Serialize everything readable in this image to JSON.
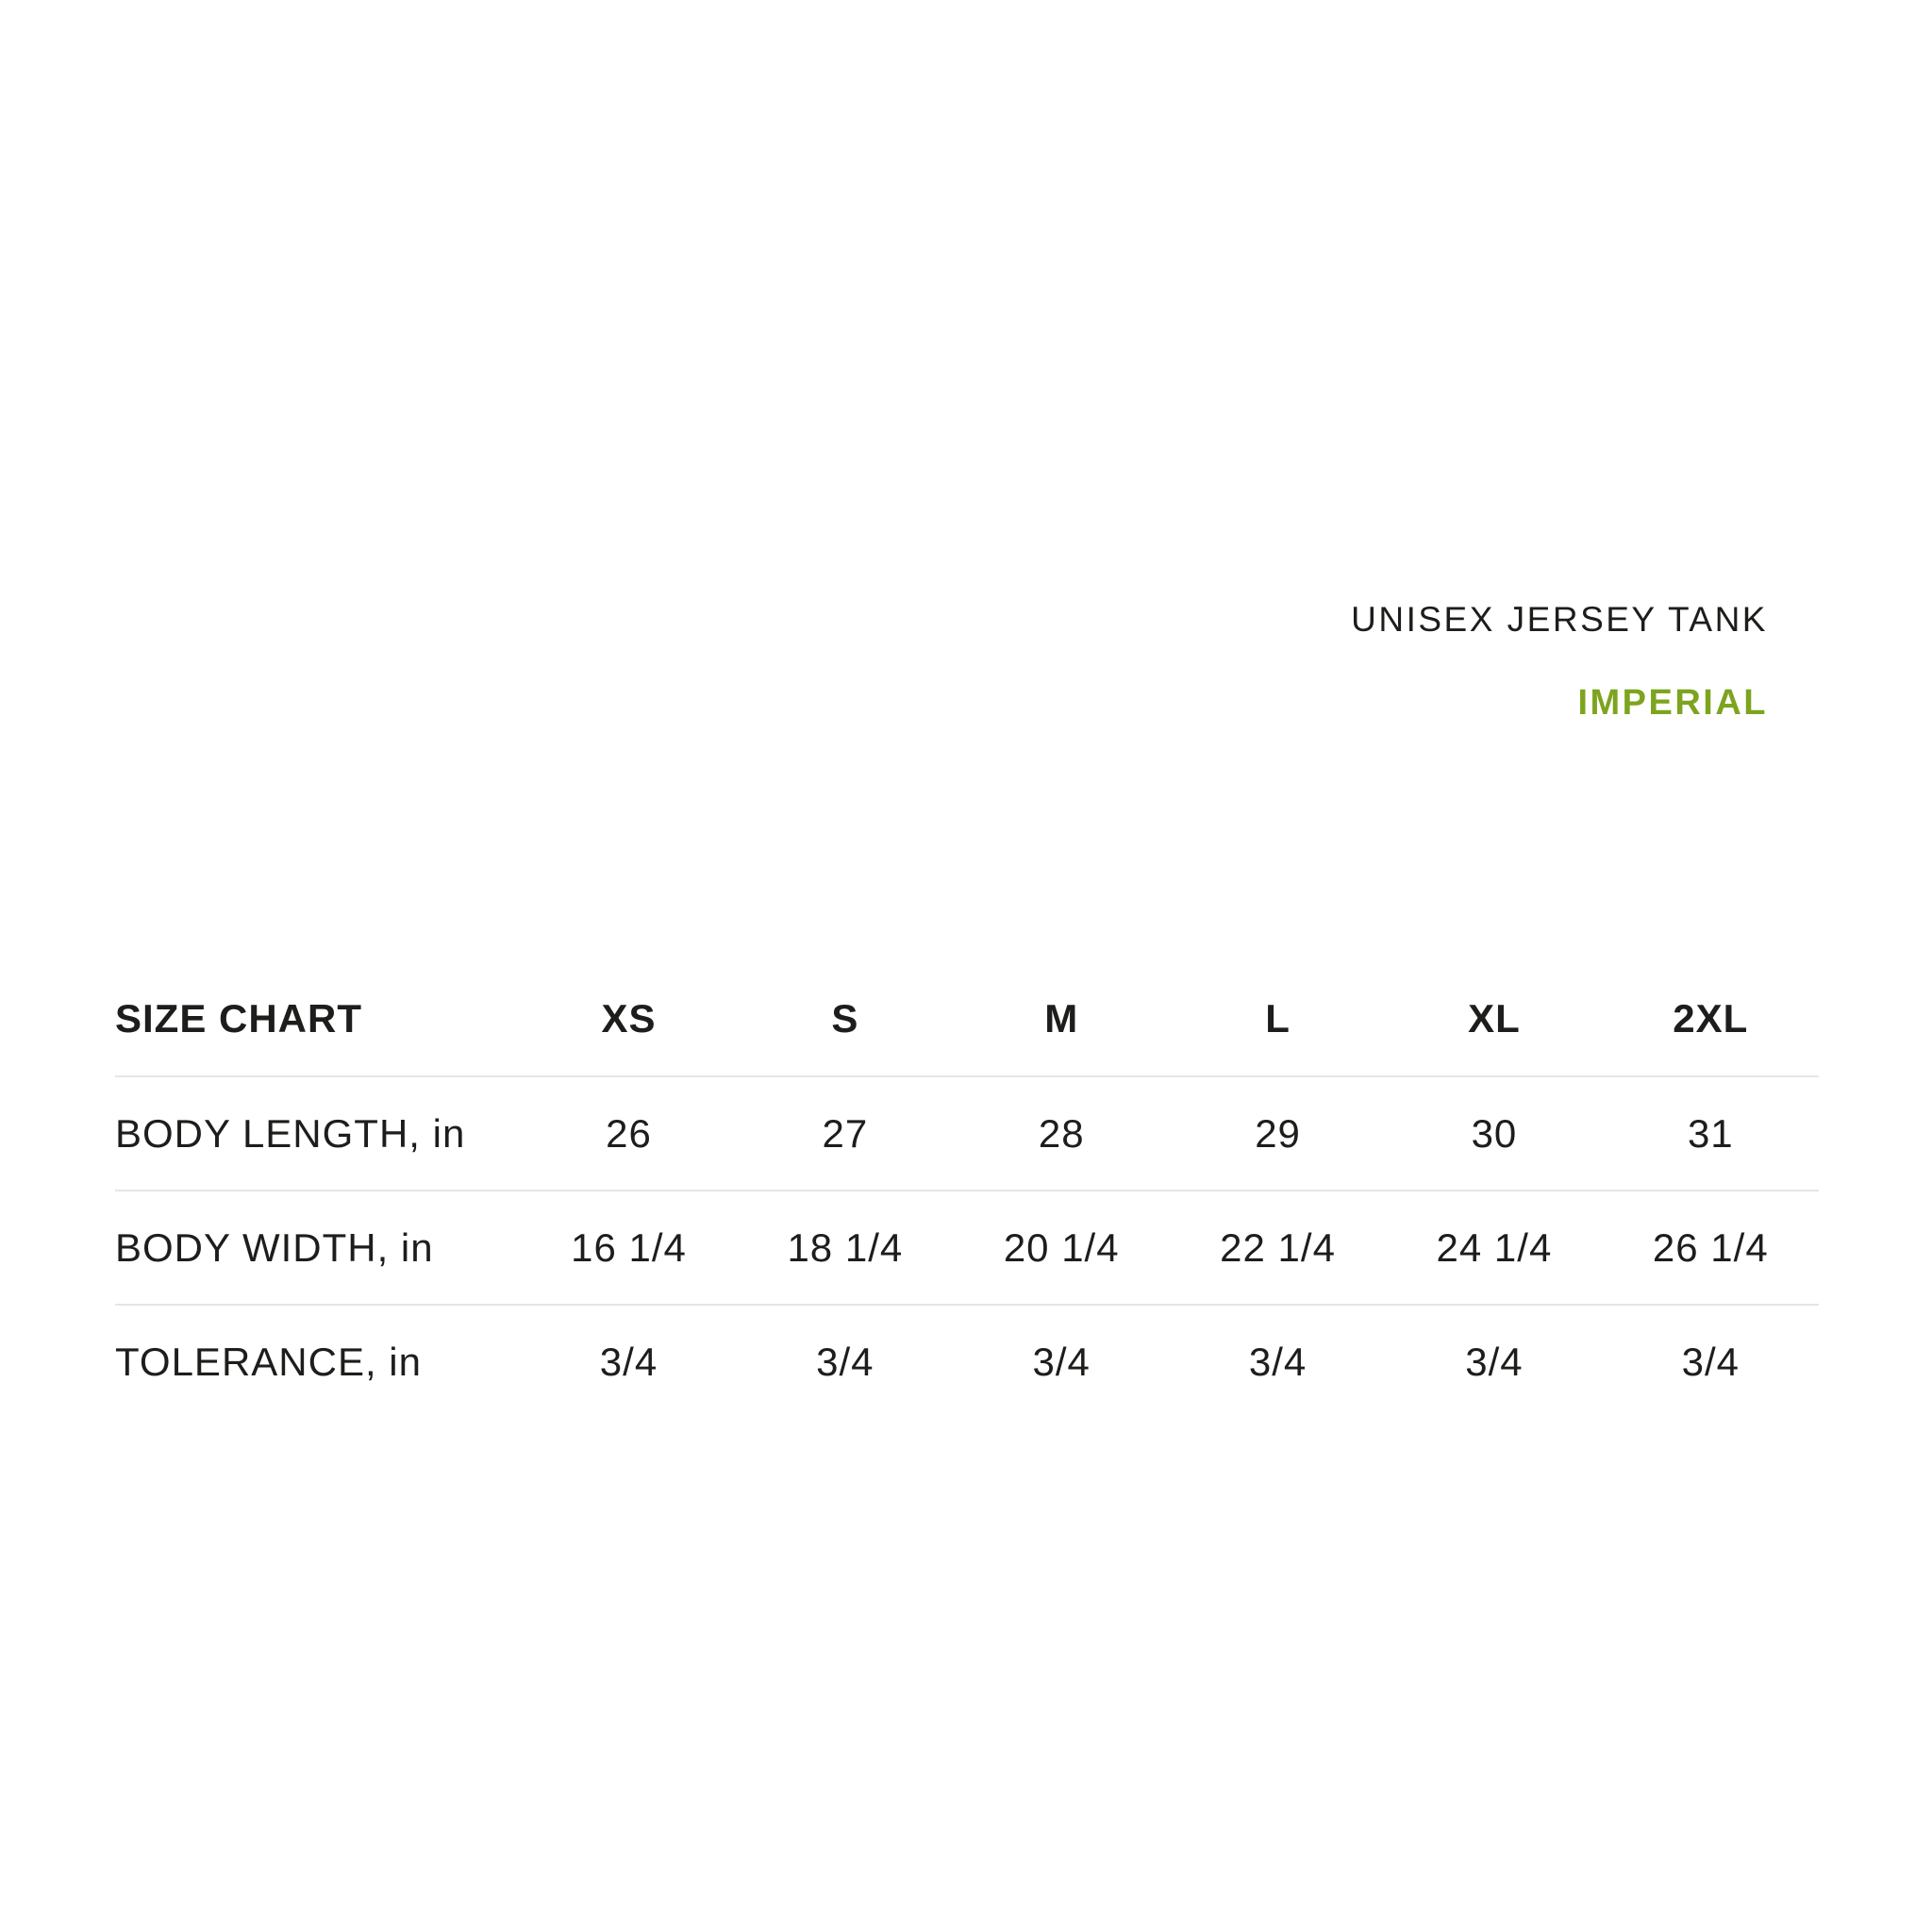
{
  "colors": {
    "accent": "#7da41e",
    "text": "#1d1d1b",
    "divider": "#e5e5e5",
    "page-bg": "#ffffff"
  },
  "header": {
    "product_name": "UNISEX JERSEY TANK",
    "unit_system": "IMPERIAL"
  },
  "chart_data": {
    "type": "table",
    "title": "SIZE CHART",
    "columns": [
      "SIZE CHART",
      "XS",
      "S",
      "M",
      "L",
      "XL",
      "2XL"
    ],
    "rows": [
      [
        "BODY LENGTH, in",
        "26",
        "27",
        "28",
        "29",
        "30",
        "31"
      ],
      [
        "BODY WIDTH, in",
        "16 1/4",
        "18 1/4",
        "20 1/4",
        "22 1/4",
        "24 1/4",
        "26 1/4"
      ],
      [
        "TOLERANCE, in",
        "3/4",
        "3/4",
        "3/4",
        "3/4",
        "3/4",
        "3/4"
      ]
    ]
  }
}
